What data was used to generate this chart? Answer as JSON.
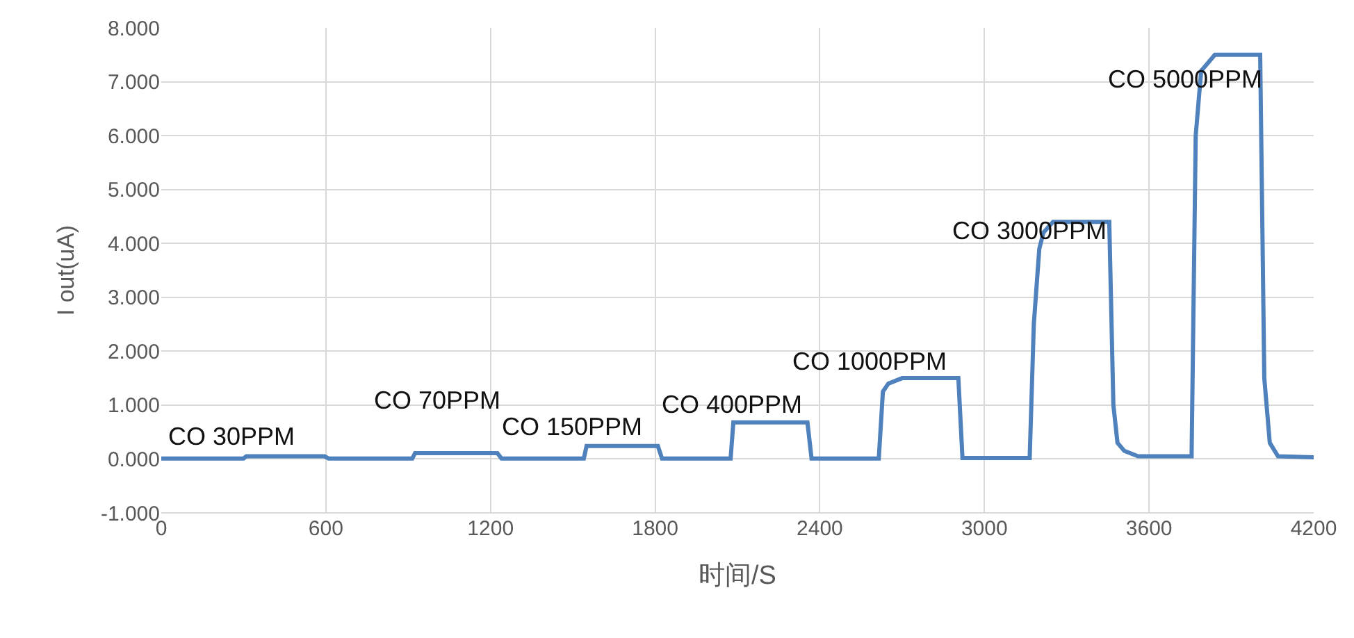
{
  "chart_data": {
    "type": "line",
    "xlabel": "时间/S",
    "ylabel": "I out(uA)",
    "x": [
      0,
      300,
      310,
      595,
      610,
      915,
      925,
      1225,
      1240,
      1540,
      1550,
      1810,
      1825,
      2075,
      2085,
      2355,
      2370,
      2615,
      2630,
      2650,
      2700,
      2905,
      2920,
      3165,
      3180,
      3200,
      3215,
      3250,
      3455,
      3470,
      3485,
      3510,
      3560,
      3755,
      3770,
      3790,
      3840,
      4005,
      4020,
      4040,
      4070,
      4200
    ],
    "series": [
      {
        "color": "#4f81bd",
        "values": [
          0.01,
          0.01,
          0.05,
          0.05,
          0.01,
          0.01,
          0.11,
          0.11,
          0.01,
          0.01,
          0.24,
          0.24,
          0.01,
          0.01,
          0.68,
          0.68,
          0.01,
          0.01,
          1.25,
          1.4,
          1.5,
          1.5,
          0.02,
          0.02,
          2.5,
          3.9,
          4.2,
          4.4,
          4.4,
          1.0,
          0.3,
          0.15,
          0.05,
          0.05,
          6.0,
          7.2,
          7.5,
          7.5,
          1.5,
          0.3,
          0.05,
          0.03
        ]
      }
    ],
    "xlim": [
      0,
      4200
    ],
    "xticks": [
      0,
      600,
      1200,
      1800,
      2400,
      3000,
      3600,
      4200
    ],
    "ylim": [
      -1,
      8
    ],
    "yticks": [
      {
        "value": -1,
        "label": "-1.000"
      },
      {
        "value": 0,
        "label": "0.000"
      },
      {
        "value": 1,
        "label": "1.000"
      },
      {
        "value": 2,
        "label": "2.000"
      },
      {
        "value": 3,
        "label": "3.000"
      },
      {
        "value": 4,
        "label": "4.000"
      },
      {
        "value": 5,
        "label": "5.000"
      },
      {
        "value": 6,
        "label": "6.000"
      },
      {
        "value": 7,
        "label": "7.000"
      },
      {
        "value": 8,
        "label": "8.000"
      }
    ],
    "grid": true,
    "marker": "none",
    "line_style": "solid",
    "annotations": [
      "CO 30PPM",
      "CO 70PPM",
      "CO 150PPM",
      "CO 400PPM",
      "CO 1000PPM",
      "CO 3000PPM",
      "CO 5000PPM"
    ]
  }
}
